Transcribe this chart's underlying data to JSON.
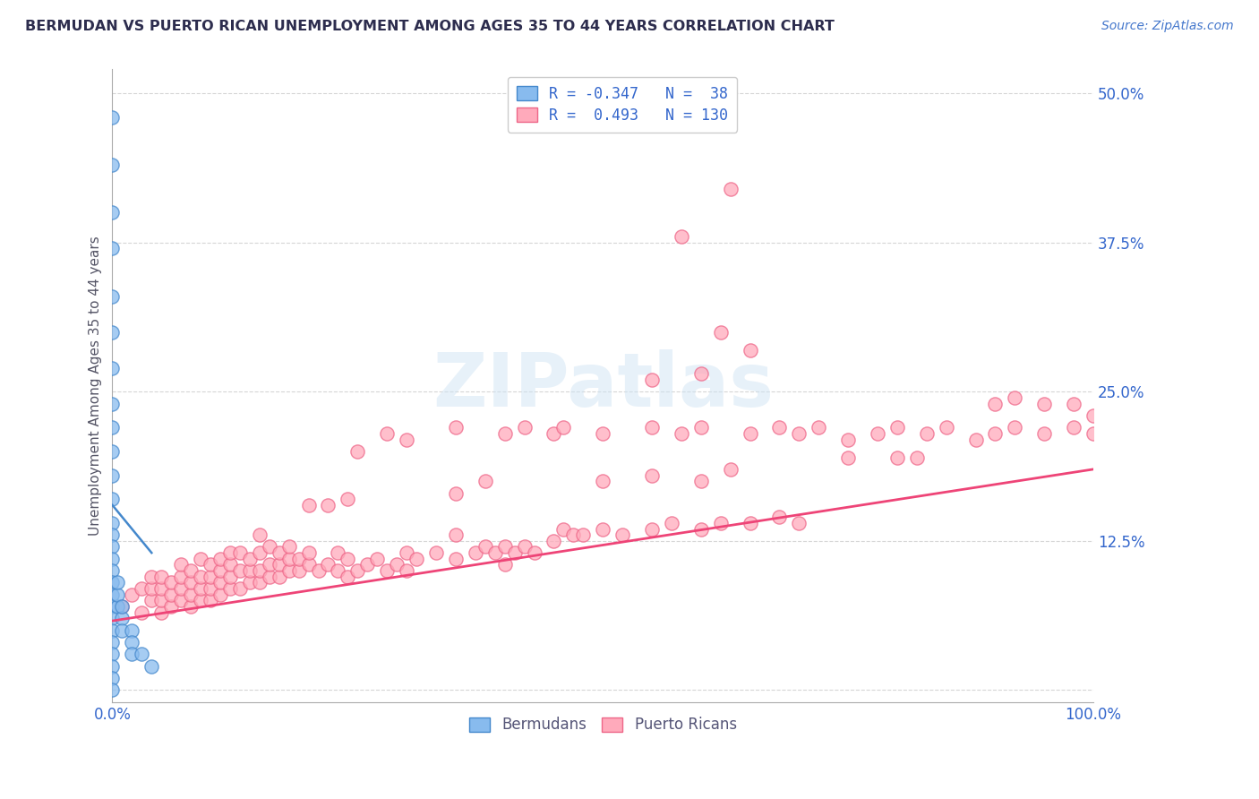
{
  "title": "BERMUDAN VS PUERTO RICAN UNEMPLOYMENT AMONG AGES 35 TO 44 YEARS CORRELATION CHART",
  "source": "Source: ZipAtlas.com",
  "ylabel": "Unemployment Among Ages 35 to 44 years",
  "xlim": [
    0.0,
    1.0
  ],
  "ylim": [
    -0.01,
    0.52
  ],
  "xticks": [
    0.0,
    0.25,
    0.5,
    0.75,
    1.0
  ],
  "xtick_labels": [
    "0.0%",
    "",
    "",
    "",
    "100.0%"
  ],
  "yticks": [
    0.0,
    0.125,
    0.25,
    0.375,
    0.5
  ],
  "ytick_labels": [
    "",
    "12.5%",
    "25.0%",
    "37.5%",
    "50.0%"
  ],
  "background_color": "#ffffff",
  "grid_color": "#bbbbbb",
  "title_color": "#2d2d4e",
  "source_color": "#4477cc",
  "axis_label_color": "#555566",
  "tick_label_color": "#3366cc",
  "bermuda_color": "#88bbee",
  "bermuda_edge_color": "#4488cc",
  "bermuda_line_color": "#4488cc",
  "pr_color": "#ffaabb",
  "pr_edge_color": "#ee6688",
  "pr_line_color": "#ee4477",
  "bermuda_points": [
    [
      0.0,
      0.48
    ],
    [
      0.0,
      0.44
    ],
    [
      0.0,
      0.4
    ],
    [
      0.0,
      0.37
    ],
    [
      0.0,
      0.33
    ],
    [
      0.0,
      0.3
    ],
    [
      0.0,
      0.27
    ],
    [
      0.0,
      0.24
    ],
    [
      0.0,
      0.22
    ],
    [
      0.0,
      0.2
    ],
    [
      0.0,
      0.18
    ],
    [
      0.0,
      0.16
    ],
    [
      0.0,
      0.14
    ],
    [
      0.0,
      0.13
    ],
    [
      0.0,
      0.12
    ],
    [
      0.0,
      0.11
    ],
    [
      0.0,
      0.1
    ],
    [
      0.0,
      0.09
    ],
    [
      0.0,
      0.08
    ],
    [
      0.0,
      0.07
    ],
    [
      0.0,
      0.06
    ],
    [
      0.0,
      0.05
    ],
    [
      0.0,
      0.04
    ],
    [
      0.0,
      0.03
    ],
    [
      0.0,
      0.02
    ],
    [
      0.0,
      0.01
    ],
    [
      0.0,
      0.0
    ],
    [
      0.005,
      0.07
    ],
    [
      0.005,
      0.08
    ],
    [
      0.005,
      0.09
    ],
    [
      0.01,
      0.06
    ],
    [
      0.01,
      0.07
    ],
    [
      0.01,
      0.05
    ],
    [
      0.02,
      0.05
    ],
    [
      0.02,
      0.04
    ],
    [
      0.02,
      0.03
    ],
    [
      0.03,
      0.03
    ],
    [
      0.04,
      0.02
    ]
  ],
  "bermuda_line": [
    [
      0.0,
      0.155
    ],
    [
      0.04,
      0.115
    ]
  ],
  "pr_points": [
    [
      0.01,
      0.07
    ],
    [
      0.02,
      0.08
    ],
    [
      0.03,
      0.065
    ],
    [
      0.03,
      0.085
    ],
    [
      0.04,
      0.075
    ],
    [
      0.04,
      0.085
    ],
    [
      0.04,
      0.095
    ],
    [
      0.05,
      0.065
    ],
    [
      0.05,
      0.075
    ],
    [
      0.05,
      0.085
    ],
    [
      0.05,
      0.095
    ],
    [
      0.06,
      0.07
    ],
    [
      0.06,
      0.08
    ],
    [
      0.06,
      0.09
    ],
    [
      0.07,
      0.075
    ],
    [
      0.07,
      0.085
    ],
    [
      0.07,
      0.095
    ],
    [
      0.07,
      0.105
    ],
    [
      0.08,
      0.07
    ],
    [
      0.08,
      0.08
    ],
    [
      0.08,
      0.09
    ],
    [
      0.08,
      0.1
    ],
    [
      0.09,
      0.075
    ],
    [
      0.09,
      0.085
    ],
    [
      0.09,
      0.095
    ],
    [
      0.09,
      0.11
    ],
    [
      0.1,
      0.075
    ],
    [
      0.1,
      0.085
    ],
    [
      0.1,
      0.095
    ],
    [
      0.1,
      0.105
    ],
    [
      0.11,
      0.08
    ],
    [
      0.11,
      0.09
    ],
    [
      0.11,
      0.1
    ],
    [
      0.11,
      0.11
    ],
    [
      0.12,
      0.085
    ],
    [
      0.12,
      0.095
    ],
    [
      0.12,
      0.105
    ],
    [
      0.12,
      0.115
    ],
    [
      0.13,
      0.085
    ],
    [
      0.13,
      0.1
    ],
    [
      0.13,
      0.115
    ],
    [
      0.14,
      0.09
    ],
    [
      0.14,
      0.1
    ],
    [
      0.14,
      0.11
    ],
    [
      0.15,
      0.09
    ],
    [
      0.15,
      0.1
    ],
    [
      0.15,
      0.115
    ],
    [
      0.15,
      0.13
    ],
    [
      0.16,
      0.095
    ],
    [
      0.16,
      0.105
    ],
    [
      0.16,
      0.12
    ],
    [
      0.17,
      0.095
    ],
    [
      0.17,
      0.105
    ],
    [
      0.17,
      0.115
    ],
    [
      0.18,
      0.1
    ],
    [
      0.18,
      0.11
    ],
    [
      0.18,
      0.12
    ],
    [
      0.19,
      0.1
    ],
    [
      0.19,
      0.11
    ],
    [
      0.2,
      0.105
    ],
    [
      0.2,
      0.115
    ],
    [
      0.21,
      0.1
    ],
    [
      0.22,
      0.105
    ],
    [
      0.23,
      0.1
    ],
    [
      0.23,
      0.115
    ],
    [
      0.24,
      0.095
    ],
    [
      0.24,
      0.11
    ],
    [
      0.25,
      0.1
    ],
    [
      0.26,
      0.105
    ],
    [
      0.27,
      0.11
    ],
    [
      0.28,
      0.1
    ],
    [
      0.29,
      0.105
    ],
    [
      0.3,
      0.1
    ],
    [
      0.3,
      0.115
    ],
    [
      0.31,
      0.11
    ],
    [
      0.33,
      0.115
    ],
    [
      0.35,
      0.11
    ],
    [
      0.35,
      0.13
    ],
    [
      0.37,
      0.115
    ],
    [
      0.38,
      0.12
    ],
    [
      0.39,
      0.115
    ],
    [
      0.4,
      0.12
    ],
    [
      0.4,
      0.105
    ],
    [
      0.41,
      0.115
    ],
    [
      0.42,
      0.12
    ],
    [
      0.43,
      0.115
    ],
    [
      0.45,
      0.125
    ],
    [
      0.46,
      0.135
    ],
    [
      0.47,
      0.13
    ],
    [
      0.48,
      0.13
    ],
    [
      0.5,
      0.135
    ],
    [
      0.52,
      0.13
    ],
    [
      0.55,
      0.135
    ],
    [
      0.57,
      0.14
    ],
    [
      0.6,
      0.135
    ],
    [
      0.62,
      0.14
    ],
    [
      0.65,
      0.14
    ],
    [
      0.68,
      0.145
    ],
    [
      0.7,
      0.14
    ],
    [
      0.25,
      0.2
    ],
    [
      0.28,
      0.215
    ],
    [
      0.3,
      0.21
    ],
    [
      0.35,
      0.22
    ],
    [
      0.4,
      0.215
    ],
    [
      0.42,
      0.22
    ],
    [
      0.45,
      0.215
    ],
    [
      0.46,
      0.22
    ],
    [
      0.5,
      0.215
    ],
    [
      0.55,
      0.22
    ],
    [
      0.58,
      0.215
    ],
    [
      0.6,
      0.22
    ],
    [
      0.65,
      0.215
    ],
    [
      0.68,
      0.22
    ],
    [
      0.7,
      0.215
    ],
    [
      0.72,
      0.22
    ],
    [
      0.75,
      0.21
    ],
    [
      0.78,
      0.215
    ],
    [
      0.8,
      0.22
    ],
    [
      0.83,
      0.215
    ],
    [
      0.85,
      0.22
    ],
    [
      0.88,
      0.21
    ],
    [
      0.9,
      0.215
    ],
    [
      0.92,
      0.22
    ],
    [
      0.95,
      0.215
    ],
    [
      0.98,
      0.22
    ],
    [
      1.0,
      0.215
    ],
    [
      0.5,
      0.175
    ],
    [
      0.55,
      0.18
    ],
    [
      0.6,
      0.175
    ],
    [
      0.63,
      0.185
    ],
    [
      0.38,
      0.175
    ],
    [
      0.35,
      0.165
    ],
    [
      0.2,
      0.155
    ],
    [
      0.22,
      0.155
    ],
    [
      0.24,
      0.16
    ],
    [
      0.75,
      0.195
    ],
    [
      0.8,
      0.195
    ],
    [
      0.82,
      0.195
    ],
    [
      0.55,
      0.26
    ],
    [
      0.6,
      0.265
    ],
    [
      0.65,
      0.285
    ],
    [
      0.62,
      0.3
    ],
    [
      0.58,
      0.38
    ],
    [
      0.63,
      0.42
    ],
    [
      0.9,
      0.24
    ],
    [
      0.92,
      0.245
    ],
    [
      0.95,
      0.24
    ],
    [
      0.98,
      0.24
    ],
    [
      1.0,
      0.23
    ]
  ],
  "pr_line": [
    [
      0.0,
      0.058
    ],
    [
      1.0,
      0.185
    ]
  ]
}
